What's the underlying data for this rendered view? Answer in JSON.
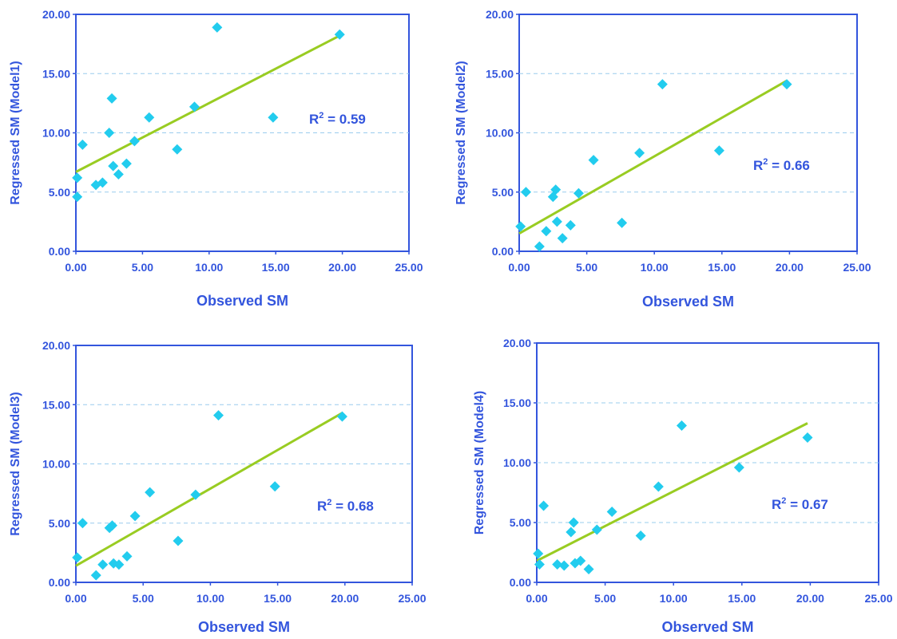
{
  "colors": {
    "axis": "#3355dd",
    "text": "#3355dd",
    "point": "#22ccee",
    "trend": "#99cc22",
    "grid": "#99ccee",
    "background": "#ffffff"
  },
  "point_marker": "diamond",
  "chart_data": [
    {
      "type": "scatter",
      "xlabel": "Observed SM",
      "ylabel": "Regressed SM (Model1)",
      "xlim": [
        0,
        25
      ],
      "ylim": [
        0,
        20
      ],
      "xticks": [
        "0.00",
        "5.00",
        "10.00",
        "15.00",
        "20.00",
        "25.00"
      ],
      "yticks": [
        "0.00",
        "5.00",
        "10.00",
        "15.00",
        "20.00"
      ],
      "grid": "horizontal dashed",
      "points": [
        [
          0.1,
          6.2
        ],
        [
          0.1,
          4.6
        ],
        [
          0.5,
          9.0
        ],
        [
          1.5,
          5.6
        ],
        [
          2.0,
          5.8
        ],
        [
          2.5,
          10.0
        ],
        [
          2.7,
          12.9
        ],
        [
          2.8,
          7.2
        ],
        [
          3.2,
          6.5
        ],
        [
          3.8,
          7.4
        ],
        [
          4.4,
          9.3
        ],
        [
          5.5,
          11.3
        ],
        [
          7.6,
          8.6
        ],
        [
          8.9,
          12.2
        ],
        [
          10.6,
          18.9
        ],
        [
          14.8,
          11.3
        ],
        [
          19.8,
          18.3
        ]
      ],
      "trendline": [
        [
          0,
          6.7
        ],
        [
          19.8,
          18.2
        ]
      ],
      "r2_label": "R",
      "r2_sup": "2",
      "r2_value": " = 0.59"
    },
    {
      "type": "scatter",
      "xlabel": "Observed SM",
      "ylabel": "Regressed SM (Model2)",
      "xlim": [
        0,
        25
      ],
      "ylim": [
        0,
        20
      ],
      "xticks": [
        "0.00",
        "5.00",
        "10.00",
        "15.00",
        "20.00",
        "25.00"
      ],
      "yticks": [
        "0.00",
        "5.00",
        "10.00",
        "15.00",
        "20.00"
      ],
      "grid": "horizontal dashed",
      "points": [
        [
          0.1,
          2.1
        ],
        [
          0.5,
          5.0
        ],
        [
          1.5,
          0.4
        ],
        [
          2.0,
          1.7
        ],
        [
          2.5,
          4.6
        ],
        [
          2.7,
          5.2
        ],
        [
          2.8,
          2.5
        ],
        [
          3.2,
          1.1
        ],
        [
          3.8,
          2.2
        ],
        [
          4.4,
          4.9
        ],
        [
          5.5,
          7.7
        ],
        [
          7.6,
          2.4
        ],
        [
          8.9,
          8.3
        ],
        [
          10.6,
          14.1
        ],
        [
          14.8,
          8.5
        ],
        [
          19.8,
          14.1
        ]
      ],
      "trendline": [
        [
          0,
          1.5
        ],
        [
          19.8,
          14.4
        ]
      ],
      "r2_label": "R",
      "r2_sup": "2",
      "r2_value": " = 0.66"
    },
    {
      "type": "scatter",
      "xlabel": "Observed SM",
      "ylabel": "Regressed SM (Model3)",
      "xlim": [
        0,
        25
      ],
      "ylim": [
        0,
        20
      ],
      "xticks": [
        "0.00",
        "5.00",
        "10.00",
        "15.00",
        "20.00",
        "25.00"
      ],
      "yticks": [
        "0.00",
        "5.00",
        "10.00",
        "15.00",
        "20.00"
      ],
      "grid": "horizontal dashed",
      "points": [
        [
          0.1,
          2.1
        ],
        [
          0.5,
          5.0
        ],
        [
          1.5,
          0.6
        ],
        [
          2.0,
          1.5
        ],
        [
          2.5,
          4.6
        ],
        [
          2.7,
          4.8
        ],
        [
          2.8,
          1.6
        ],
        [
          3.2,
          1.5
        ],
        [
          3.8,
          2.2
        ],
        [
          4.4,
          5.6
        ],
        [
          5.5,
          7.6
        ],
        [
          7.6,
          3.5
        ],
        [
          8.9,
          7.4
        ],
        [
          10.6,
          14.1
        ],
        [
          14.8,
          8.1
        ],
        [
          19.8,
          14.0
        ]
      ],
      "trendline": [
        [
          0,
          1.4
        ],
        [
          19.8,
          14.3
        ]
      ],
      "r2_label": "R",
      "r2_sup": "2",
      "r2_value": " = 0.68"
    },
    {
      "type": "scatter",
      "xlabel": "Observed SM",
      "ylabel": "Regressed SM (Model4)",
      "xlim": [
        0,
        25
      ],
      "ylim": [
        0,
        20
      ],
      "xticks": [
        "0.00",
        "5.00",
        "10.00",
        "15.00",
        "20.00",
        "25.00"
      ],
      "yticks": [
        "0.00",
        "5.00",
        "10.00",
        "15.00",
        "20.00"
      ],
      "grid": "horizontal dashed",
      "points": [
        [
          0.1,
          2.4
        ],
        [
          0.2,
          1.5
        ],
        [
          0.5,
          6.4
        ],
        [
          1.5,
          1.5
        ],
        [
          2.0,
          1.4
        ],
        [
          2.5,
          4.2
        ],
        [
          2.7,
          5.0
        ],
        [
          2.8,
          1.6
        ],
        [
          3.2,
          1.8
        ],
        [
          3.8,
          1.1
        ],
        [
          4.4,
          4.4
        ],
        [
          5.5,
          5.9
        ],
        [
          7.6,
          3.9
        ],
        [
          8.9,
          8.0
        ],
        [
          10.6,
          13.1
        ],
        [
          14.8,
          9.6
        ],
        [
          19.8,
          12.1
        ]
      ],
      "trendline": [
        [
          0,
          1.8
        ],
        [
          19.8,
          13.3
        ]
      ],
      "r2_label": "R",
      "r2_sup": "2",
      "r2_value": " = 0.67"
    }
  ]
}
